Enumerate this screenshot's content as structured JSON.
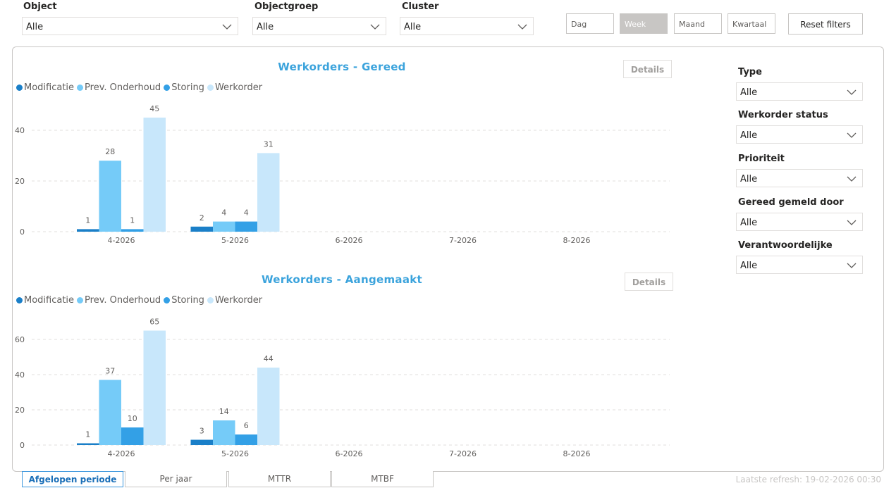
{
  "filters": {
    "object": {
      "label": "Object",
      "value": "Alle"
    },
    "objectgroep": {
      "label": "Objectgroep",
      "value": "Alle"
    },
    "cluster": {
      "label": "Cluster",
      "value": "Alle"
    }
  },
  "time_buttons": {
    "dag": "Dag",
    "week": "Week",
    "maand": "Maand",
    "kwartaal": "Kwartaal",
    "active": "Week"
  },
  "reset_label": "Reset filters",
  "side_filters": [
    {
      "label": "Type",
      "value": "Alle"
    },
    {
      "label": "Werkorder status",
      "value": "Alle"
    },
    {
      "label": "Prioriteit",
      "value": "Alle"
    },
    {
      "label": "Gereed gemeld door",
      "value": "Alle"
    },
    {
      "label": "Verantwoordelijke",
      "value": "Alle"
    }
  ],
  "details_label": "Details",
  "legend": [
    "Modificatie",
    "Prev. Onderhoud",
    "Storing",
    "Werkorder"
  ],
  "colors": {
    "modificatie": "#1a7fc8",
    "prev_onderhoud": "#75cbf8",
    "storing": "#33a0e6",
    "werkorder": "#c8e7fb",
    "title": "#3ba3dc"
  },
  "chart_data": [
    {
      "type": "bar",
      "title": "Werkorders - Gereed",
      "categories": [
        "4-2026",
        "5-2026",
        "6-2026",
        "7-2026",
        "8-2026"
      ],
      "series": [
        {
          "name": "Modificatie",
          "values": [
            1,
            2,
            0,
            0,
            0
          ]
        },
        {
          "name": "Prev. Onderhoud",
          "values": [
            28,
            4,
            0,
            0,
            0
          ]
        },
        {
          "name": "Storing",
          "values": [
            1,
            4,
            0,
            0,
            0
          ]
        },
        {
          "name": "Werkorder",
          "values": [
            45,
            31,
            0,
            0,
            0
          ]
        }
      ],
      "yticks": [
        0,
        20,
        40
      ],
      "ylim": [
        0,
        50
      ],
      "legend_position": "top-left",
      "grid": true
    },
    {
      "type": "bar",
      "title": "Werkorders - Aangemaakt",
      "categories": [
        "4-2026",
        "5-2026",
        "6-2026",
        "7-2026",
        "8-2026"
      ],
      "series": [
        {
          "name": "Modificatie",
          "values": [
            1,
            3,
            0,
            0,
            0
          ]
        },
        {
          "name": "Prev. Onderhoud",
          "values": [
            37,
            14,
            0,
            0,
            0
          ]
        },
        {
          "name": "Storing",
          "values": [
            10,
            6,
            0,
            0,
            0
          ]
        },
        {
          "name": "Werkorder",
          "values": [
            65,
            44,
            0,
            0,
            0
          ]
        }
      ],
      "yticks": [
        0,
        20,
        40,
        60
      ],
      "ylim": [
        0,
        70
      ],
      "legend_position": "top-left",
      "grid": true
    }
  ],
  "tabs": [
    "Afgelopen periode",
    "Per jaar",
    "MTTR",
    "MTBF"
  ],
  "active_tab": "Afgelopen periode",
  "refresh_text": "Laatste refresh: 19-02-2026 00:30"
}
